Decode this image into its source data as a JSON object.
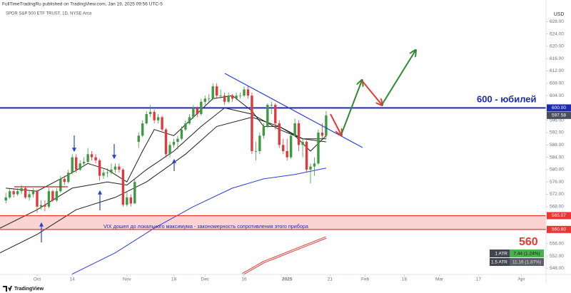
{
  "header": "FullTimeTradingRu published on TradingView.com, Jan 19, 2025 09:56 UTC-5",
  "footer": "TradingView",
  "chart_data": {
    "type": "candlestick",
    "title": "SPDR S&P 500 ETF TRUST, 1D, NYSE Arca",
    "currency": "USD",
    "xlim": [
      -9.5,
      130.3
    ],
    "ylim": [
      546,
      635
    ],
    "xticks": [
      {
        "value": 0,
        "label": "Oct"
      },
      {
        "value": 9,
        "label": "14"
      },
      {
        "value": 23,
        "label": "Nov"
      },
      {
        "value": 35,
        "label": "18"
      },
      {
        "value": 43,
        "label": "Dec"
      },
      {
        "value": 53,
        "label": "16"
      },
      {
        "value": 64,
        "label": "2025"
      },
      {
        "value": 75,
        "label": "21"
      },
      {
        "value": 84,
        "label": "Feb"
      },
      {
        "value": 94,
        "label": "18"
      },
      {
        "value": 103,
        "label": "Mar"
      },
      {
        "value": 113,
        "label": "17"
      },
      {
        "value": 124,
        "label": "Apr"
      }
    ],
    "yticks": [
      {
        "value": 548,
        "label": "548.00"
      },
      {
        "value": 552,
        "label": "552.00"
      },
      {
        "value": 556,
        "label": "556.00"
      },
      {
        "value": 568,
        "label": "568.00"
      },
      {
        "value": 572,
        "label": "572.00"
      },
      {
        "value": 576,
        "label": "576.00"
      },
      {
        "value": 580,
        "label": "580.00"
      },
      {
        "value": 584,
        "label": "584.00"
      },
      {
        "value": 588,
        "label": "588.00"
      },
      {
        "value": 592,
        "label": "592.00"
      },
      {
        "value": 596,
        "label": "596.00"
      },
      {
        "value": 604,
        "label": "604.00"
      },
      {
        "value": 608,
        "label": "608.00"
      },
      {
        "value": 612,
        "label": "612.00"
      },
      {
        "value": 616,
        "label": "616.00"
      },
      {
        "value": 620,
        "label": "620.00"
      },
      {
        "value": 624,
        "label": "624.00"
      },
      {
        "value": 628,
        "label": "628.00"
      }
    ],
    "up_color": "#3e9a42",
    "down_color": "#e0393b",
    "x": [
      -8,
      -7,
      -6,
      -5,
      -4,
      -3,
      -2,
      -1,
      0,
      1,
      2,
      3,
      4,
      5,
      6,
      7,
      8,
      9,
      10,
      11,
      12,
      13,
      14,
      15,
      16,
      17,
      18,
      19,
      20,
      21,
      22,
      23,
      24,
      25,
      26,
      27,
      28,
      29,
      30,
      31,
      32,
      33,
      34,
      35,
      36,
      37,
      38,
      39,
      40,
      41,
      42,
      43,
      44,
      45,
      46,
      47,
      48,
      49,
      50,
      51,
      52,
      53,
      54,
      55,
      56,
      57,
      58,
      59,
      60,
      61,
      62,
      63,
      64,
      65,
      66,
      67,
      68,
      69,
      70,
      71,
      72,
      73,
      74
    ],
    "candles": [
      [
        570,
        572.5,
        569,
        571
      ],
      [
        571,
        574,
        570.5,
        573
      ],
      [
        573,
        574,
        571,
        572
      ],
      [
        572,
        574,
        571.5,
        573
      ],
      [
        573,
        575,
        572,
        574
      ],
      [
        574,
        574.5,
        570.5,
        571
      ],
      [
        571,
        573,
        570,
        572
      ],
      [
        572,
        574,
        571,
        573
      ],
      [
        573,
        573.5,
        566,
        568
      ],
      [
        568,
        570,
        567,
        568.5
      ],
      [
        568.5,
        570,
        566.5,
        568
      ],
      [
        568,
        574,
        567.5,
        573
      ],
      [
        573,
        573.5,
        569.5,
        570
      ],
      [
        570,
        574,
        569.5,
        573
      ],
      [
        573,
        578,
        572.5,
        577
      ],
      [
        577,
        578,
        575,
        576
      ],
      [
        576,
        580,
        575.5,
        579
      ],
      [
        579,
        585,
        578.5,
        584
      ],
      [
        584,
        585,
        579,
        580
      ],
      [
        580,
        583,
        579.5,
        582
      ],
      [
        582,
        584,
        581,
        582.5
      ],
      [
        582.5,
        587,
        582,
        585
      ],
      [
        585,
        586,
        583,
        584
      ],
      [
        584,
        585,
        582,
        583
      ],
      [
        583,
        583.5,
        576.5,
        578
      ],
      [
        578,
        580,
        577,
        579
      ],
      [
        579,
        580.5,
        577.5,
        579
      ],
      [
        579,
        582,
        578.5,
        580
      ],
      [
        580,
        582,
        579,
        581
      ],
      [
        581,
        582,
        579,
        580
      ],
      [
        580,
        580.5,
        568,
        568.6
      ],
      [
        568.6,
        573,
        568,
        571
      ],
      [
        571,
        572,
        568,
        569
      ],
      [
        569,
        577,
        569,
        576
      ],
      [
        589,
        592,
        587,
        591
      ],
      [
        591,
        596,
        590.5,
        595
      ],
      [
        595,
        599,
        594.5,
        598
      ],
      [
        598,
        601,
        597,
        598.7
      ],
      [
        598.7,
        599.5,
        595,
        596
      ],
      [
        596,
        598,
        595,
        597
      ],
      [
        597,
        597.5,
        592.5,
        593
      ],
      [
        593,
        593.5,
        584,
        585
      ],
      [
        585,
        589,
        584,
        588
      ],
      [
        588,
        590,
        587,
        589
      ],
      [
        589,
        591,
        586.5,
        590
      ],
      [
        590,
        594,
        589.5,
        593
      ],
      [
        593,
        596,
        592.5,
        595
      ],
      [
        595,
        598,
        594.5,
        597
      ],
      [
        597,
        601,
        596.5,
        600
      ],
      [
        600,
        600.5,
        597,
        598
      ],
      [
        598,
        603,
        597.5,
        602
      ],
      [
        602,
        604,
        601,
        603
      ],
      [
        603,
        604.5,
        602,
        603
      ],
      [
        603,
        608,
        602.5,
        607
      ],
      [
        607,
        608,
        603,
        604
      ],
      [
        604,
        606,
        603,
        604
      ],
      [
        604,
        605,
        601,
        602
      ],
      [
        602,
        605,
        601.5,
        604
      ],
      [
        604,
        604.5,
        602,
        603
      ],
      [
        603,
        605,
        602.5,
        604
      ],
      [
        604,
        605,
        603,
        604
      ],
      [
        604,
        607,
        603.5,
        606
      ],
      [
        606,
        607,
        603,
        604
      ],
      [
        604,
        605,
        585,
        586
      ],
      [
        586,
        589,
        583,
        586
      ],
      [
        586,
        592,
        585,
        591
      ],
      [
        591,
        595,
        590,
        594
      ],
      [
        594,
        601.5,
        593.5,
        601
      ],
      [
        601,
        602,
        598,
        601
      ],
      [
        601,
        601.5,
        593,
        595
      ],
      [
        595,
        596,
        587,
        588
      ],
      [
        588,
        590,
        585,
        586
      ],
      [
        586,
        590,
        583,
        584
      ],
      [
        584,
        592,
        583.5,
        591
      ],
      [
        591,
        596.5,
        590.5,
        595
      ],
      [
        595,
        596,
        586,
        588
      ],
      [
        588,
        590,
        584,
        589
      ],
      [
        589,
        589.5,
        579,
        580
      ],
      [
        580,
        582,
        575.5,
        581
      ],
      [
        581,
        584,
        578,
        582
      ],
      [
        582,
        593,
        581.5,
        592
      ],
      [
        592,
        595,
        590,
        591
      ],
      [
        591,
        599,
        590,
        597.58
      ]
    ],
    "series": [
      {
        "color": "#1e1e1e",
        "x": [
          -8,
          0,
          9,
          13,
          18,
          23,
          27,
          30,
          35,
          40,
          45,
          50,
          55,
          58,
          62,
          66,
          70,
          74
        ],
        "values": [
          574,
          573,
          579,
          582,
          580,
          576,
          586,
          593,
          591,
          597,
          603,
          604,
          599,
          594,
          594,
          591,
          586,
          591
        ]
      },
      {
        "color": "#1e1e1e",
        "x": [
          -9.5,
          0,
          9,
          18,
          23,
          28,
          35,
          42,
          48,
          55,
          62,
          68,
          74
        ],
        "values": [
          561,
          567,
          574,
          576,
          575,
          580,
          586,
          594,
          600,
          598,
          593,
          590,
          590
        ]
      },
      {
        "color": "#1e1e1e",
        "x": [
          -9.5,
          0,
          10,
          20,
          28,
          38,
          46,
          55,
          62,
          68,
          74
        ],
        "values": [
          553,
          559,
          567,
          571,
          576,
          585,
          594,
          597,
          594,
          590,
          589
        ]
      },
      {
        "color": "#2b3fd6",
        "x": [
          8.8,
          20,
          30,
          40,
          50,
          58,
          66,
          74
        ],
        "values": [
          546,
          553,
          561,
          568,
          574,
          577,
          578.4,
          580.5
        ]
      },
      {
        "color": "#e53935",
        "double": true,
        "x": [
          52.6,
          58,
          64,
          70,
          74
        ],
        "values": [
          546.1,
          550,
          553,
          556,
          558
        ]
      }
    ],
    "levels": [
      {
        "value": 600,
        "label": "600.00",
        "color": "#1c2bb5"
      },
      {
        "value": 565.07,
        "label": "565.07",
        "color": "#e53935"
      },
      {
        "value": 560.6,
        "label": "560.60",
        "color": "#e53935"
      }
    ],
    "zone_color": "#fbd3d3",
    "last_price_color": "#4a4e5a",
    "annotations": {
      "level_note": "600 - юбилей",
      "vix_note": "VIX дошел до локального максимума - закономерность сопротивления этого прибора",
      "target_note": "560"
    },
    "atr_table": [
      [
        "1 ATR",
        "7.44 (1.24%)"
      ],
      [
        "1.5 ATR",
        "11.16 (1.87%)"
      ]
    ]
  }
}
